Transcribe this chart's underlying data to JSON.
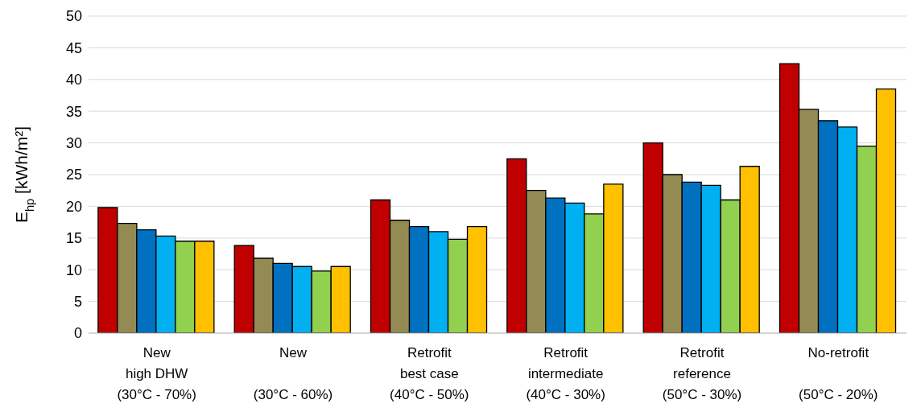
{
  "chart_data": {
    "type": "bar",
    "ylabel": "E$_{hp}$ [kWh/m²]",
    "categories": [
      "New\nhigh DHW\n(30°C - 70%)",
      "New\n\n(30°C - 60%)",
      "Retrofit\nbest case\n(40°C - 50%)",
      "Retrofit\nintermediate\n(40°C - 30%)",
      "Retrofit\nreference\n(50°C - 30%)",
      "No-retrofit\n\n(50°C - 20%)"
    ],
    "series": [
      {
        "color": "#c00000",
        "values": [
          19.8,
          13.8,
          21,
          27.5,
          30,
          42.5
        ]
      },
      {
        "color": "#948a54",
        "values": [
          17.3,
          11.8,
          17.8,
          22.5,
          25,
          35.3
        ]
      },
      {
        "color": "#0070c0",
        "values": [
          16.3,
          11,
          16.8,
          21.3,
          23.8,
          33.5
        ]
      },
      {
        "color": "#00b0f0",
        "values": [
          15.3,
          10.5,
          16,
          20.5,
          23.3,
          32.5
        ]
      },
      {
        "color": "#92d050",
        "values": [
          14.5,
          9.8,
          14.8,
          18.8,
          21,
          29.5
        ]
      },
      {
        "color": "#ffc000",
        "values": [
          14.5,
          10.5,
          16.8,
          23.5,
          26.3,
          38.5
        ]
      }
    ],
    "ylim": [
      0,
      50
    ],
    "yticks": [
      0,
      5,
      10,
      15,
      20,
      25,
      30,
      35,
      40,
      45,
      50
    ],
    "grid": "y",
    "legend": false
  }
}
